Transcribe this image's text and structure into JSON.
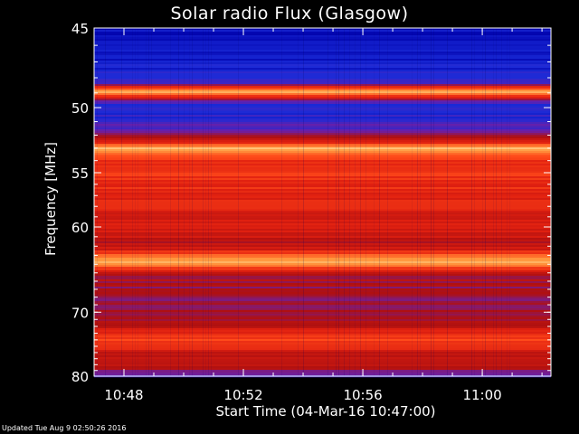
{
  "chart_data": {
    "type": "heatmap",
    "title": "Solar radio Flux (Glasgow)",
    "xlabel": "Start Time (04-Mar-16 10:47:00)",
    "ylabel": "Frequency [MHz]",
    "x_ticks": [
      "10:48",
      "10:52",
      "10:56",
      "11:00"
    ],
    "x_tick_minutes": [
      1,
      5,
      9,
      13
    ],
    "xlim_minutes": [
      0,
      15.3
    ],
    "y_ticks": [
      45,
      50,
      55,
      60,
      70,
      80
    ],
    "ylim_mhz": [
      45,
      80
    ],
    "y_scale": "reciprocal",
    "colormap": [
      "#0000aa",
      "#1a2bd8",
      "#6a1fa8",
      "#b01010",
      "#e02010",
      "#ff4a1a",
      "#ff9a40",
      "#ffe0a0"
    ],
    "intensity_by_frequency": [
      {
        "mhz": 45.5,
        "level": 0.05
      },
      {
        "mhz": 47.0,
        "level": 0.1
      },
      {
        "mhz": 48.3,
        "level": 0.15
      },
      {
        "mhz": 48.9,
        "level": 0.98
      },
      {
        "mhz": 49.6,
        "level": 0.2
      },
      {
        "mhz": 50.5,
        "level": 0.15
      },
      {
        "mhz": 51.5,
        "level": 0.25
      },
      {
        "mhz": 52.5,
        "level": 0.55
      },
      {
        "mhz": 53.0,
        "level": 0.9
      },
      {
        "mhz": 54.0,
        "level": 0.6
      },
      {
        "mhz": 55.0,
        "level": 0.65
      },
      {
        "mhz": 57.0,
        "level": 0.58
      },
      {
        "mhz": 60.0,
        "level": 0.55
      },
      {
        "mhz": 62.0,
        "level": 0.45
      },
      {
        "mhz": 63.8,
        "level": 0.95
      },
      {
        "mhz": 65.0,
        "level": 0.45
      },
      {
        "mhz": 68.0,
        "level": 0.35
      },
      {
        "mhz": 71.0,
        "level": 0.4
      },
      {
        "mhz": 73.0,
        "level": 0.55
      },
      {
        "mhz": 74.0,
        "level": 0.7
      },
      {
        "mhz": 76.0,
        "level": 0.5
      },
      {
        "mhz": 78.5,
        "level": 0.45
      },
      {
        "mhz": 80.0,
        "level": 0.25
      }
    ]
  },
  "footer": {
    "updated": "Updated Tue Aug  9 02:50:26 2016"
  }
}
